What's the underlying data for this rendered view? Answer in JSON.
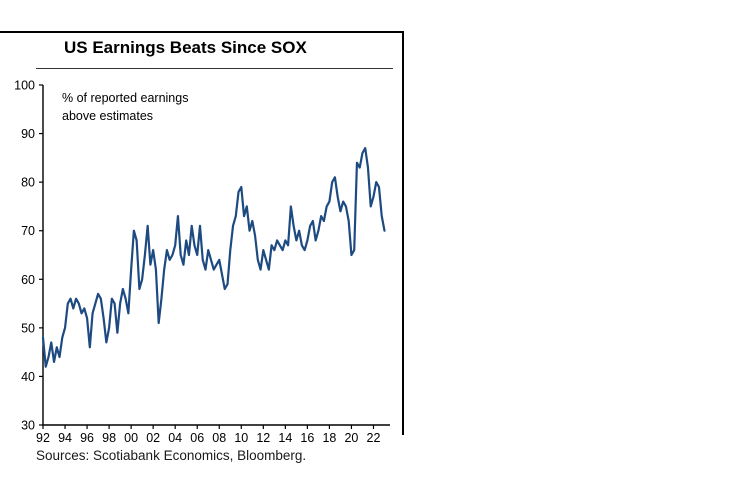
{
  "chart_data": {
    "type": "line",
    "title": "US Earnings Beats Since SOX",
    "annotation": "% of reported earnings\nabove estimates",
    "source": "Sources: Scotiabank Economics, Bloomberg.",
    "xlabel": "",
    "ylabel": "",
    "ylim": [
      30,
      100
    ],
    "xlim": [
      1992,
      2023.5
    ],
    "grid": false,
    "legend": "none",
    "yticks": [
      30,
      40,
      50,
      60,
      70,
      80,
      90,
      100
    ],
    "xticks": {
      "years": [
        1992,
        1994,
        1996,
        1998,
        2000,
        2002,
        2004,
        2006,
        2008,
        2010,
        2012,
        2014,
        2016,
        2018,
        2020,
        2022
      ],
      "labels": [
        "92",
        "94",
        "96",
        "98",
        "00",
        "02",
        "04",
        "06",
        "08",
        "10",
        "12",
        "14",
        "16",
        "18",
        "20",
        "22"
      ]
    },
    "series": [
      {
        "name": "% of reported earnings above estimates",
        "color": "#1e4a82",
        "x_start": 1992,
        "x_step": 0.25,
        "values": [
          48,
          42,
          44,
          47,
          43,
          46,
          44,
          48,
          50,
          55,
          56,
          54,
          56,
          55,
          53,
          54,
          52,
          46,
          53,
          55,
          57,
          56,
          52,
          47,
          50,
          56,
          55,
          49,
          55,
          58,
          56,
          53,
          62,
          70,
          68,
          58,
          60,
          65,
          71,
          63,
          66,
          62,
          51,
          56,
          62,
          66,
          64,
          65,
          67,
          73,
          65,
          63,
          68,
          65,
          71,
          67,
          65,
          71,
          64,
          62,
          66,
          64,
          62,
          63,
          64,
          61,
          58,
          59,
          66,
          71,
          73,
          78,
          79,
          73,
          75,
          70,
          72,
          69,
          64,
          62,
          66,
          64,
          62,
          67,
          66,
          68,
          67,
          66,
          68,
          67,
          75,
          71,
          68,
          70,
          67,
          66,
          68,
          71,
          72,
          68,
          70,
          73,
          72,
          75,
          76,
          80,
          81,
          77,
          74,
          76,
          75,
          72,
          65,
          66,
          84,
          83,
          86,
          87,
          83,
          75,
          77,
          80,
          79,
          73,
          70
        ]
      }
    ]
  }
}
